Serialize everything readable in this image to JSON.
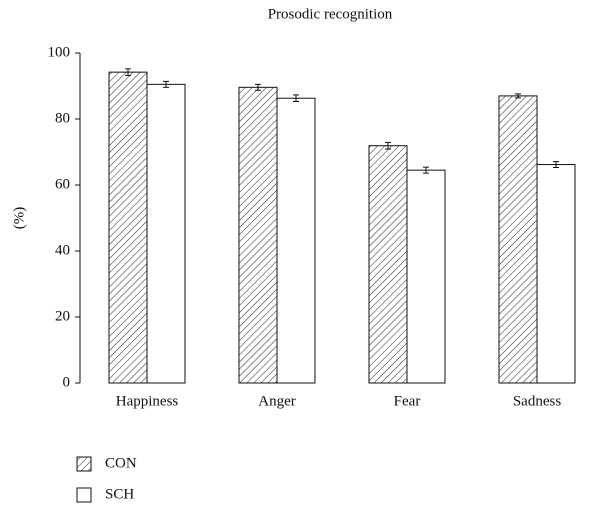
{
  "chart_data": {
    "type": "bar",
    "title": "Prosodic recognition",
    "ylabel": "(%)",
    "categories": [
      "Happiness",
      "Anger",
      "Fear",
      "Sadness"
    ],
    "series": [
      {
        "name": "CON",
        "color": "#ffffff",
        "hatch": true,
        "values": [
          94.2,
          89.6,
          71.9,
          87.0
        ],
        "errors": [
          1.0,
          0.9,
          1.0,
          0.6
        ]
      },
      {
        "name": "SCH",
        "color": "#ffffff",
        "hatch": false,
        "values": [
          90.5,
          86.3,
          64.5,
          66.2
        ],
        "errors": [
          0.9,
          1.0,
          0.9,
          0.9
        ]
      }
    ],
    "ylim": [
      0,
      100
    ],
    "yticks": [
      0,
      20,
      40,
      60,
      80,
      100
    ],
    "grid": false,
    "legend": "bottom left"
  }
}
